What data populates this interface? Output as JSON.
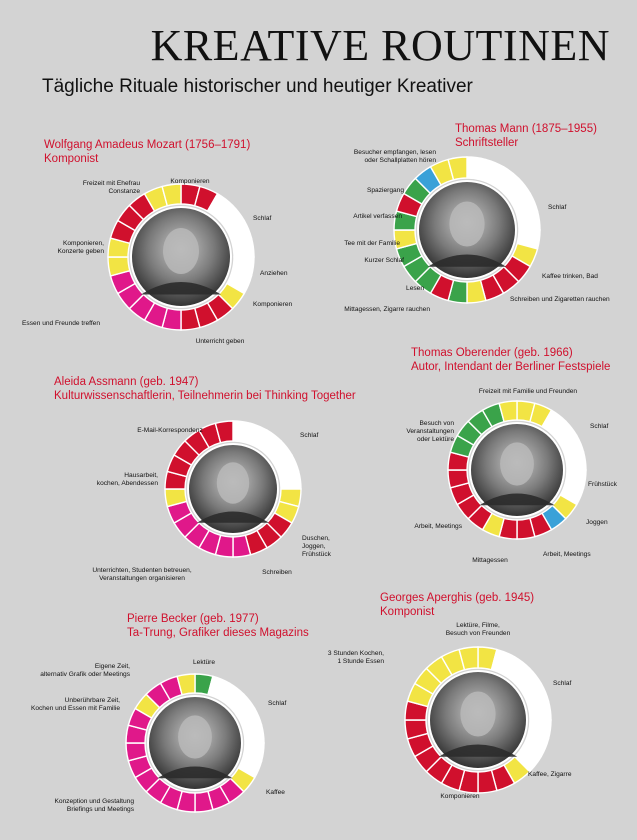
{
  "title": "KREATIVE ROUTINEN",
  "subtitle": "Tägliche Rituale historischer und heutiger Kreativer",
  "colors": {
    "work": "#d0102d",
    "leisure": "#f2e444",
    "sleep": "#ffffff",
    "teaching": "#e0188a",
    "exercise": "#3aa34a",
    "meal": "#3aa34a",
    "coffee": "#3aa1d8"
  },
  "chart_data": [
    {
      "type": "pie",
      "name_lines": [
        "Wolfgang Amadeus Mozart (1756–1791)",
        "Komponist"
      ],
      "hours": [
        "work",
        "work",
        "sleep",
        "sleep",
        "sleep",
        "sleep",
        "sleep",
        "sleep",
        "leisure",
        "work",
        "work",
        "work",
        "teaching",
        "teaching",
        "teaching",
        "teaching",
        "teaching",
        "leisure",
        "leisure",
        "work",
        "work",
        "work",
        "leisure",
        "leisure"
      ],
      "labels": [
        {
          "lines": [
            "Komponieren"
          ]
        },
        {
          "lines": [
            "Schlaf"
          ]
        },
        {
          "lines": [
            "Anziehen"
          ]
        },
        {
          "lines": [
            "Komponieren"
          ]
        },
        {
          "lines": [
            "Unterricht geben"
          ]
        },
        {
          "lines": [
            "Essen und Freunde treffen"
          ]
        },
        {
          "lines": [
            "Komponieren,",
            "Konzerte geben"
          ]
        },
        {
          "lines": [
            "Freizeit mit Ehefrau",
            "Constanze"
          ]
        }
      ]
    },
    {
      "type": "pie",
      "name_lines": [
        "Thomas Mann (1875–1955)",
        "Schriftsteller"
      ],
      "hours": [
        "sleep",
        "sleep",
        "sleep",
        "sleep",
        "sleep",
        "sleep",
        "sleep",
        "leisure",
        "work",
        "work",
        "work",
        "leisure",
        "exercise",
        "work",
        "exercise",
        "exercise",
        "exercise",
        "leisure",
        "exercise",
        "work",
        "exercise",
        "coffee",
        "leisure",
        "leisure"
      ],
      "labels": [
        {
          "lines": [
            "Schlaf"
          ]
        },
        {
          "lines": [
            "Kaffee trinken, Bad"
          ]
        },
        {
          "lines": [
            "Schreiben und Zigaretten rauchen"
          ]
        },
        {
          "lines": [
            "Mittagessen, Zigarre rauchen"
          ]
        },
        {
          "lines": [
            "Lesen"
          ]
        },
        {
          "lines": [
            "Kurzer Schlaf"
          ]
        },
        {
          "lines": [
            "Tee mit der Familie"
          ]
        },
        {
          "lines": [
            "Artikel verfassen"
          ]
        },
        {
          "lines": [
            "Spaziergang"
          ]
        },
        {
          "lines": [
            "Besucher empfangen, lesen",
            "oder Schallplatten hören"
          ]
        }
      ]
    },
    {
      "type": "pie",
      "name_lines": [
        "Aleida Assmann (geb. 1947)",
        "Kulturwissenschaftlerin, Teilnehmerin bei Thinking Together"
      ],
      "hours": [
        "sleep",
        "sleep",
        "sleep",
        "sleep",
        "sleep",
        "sleep",
        "leisure",
        "leisure",
        "work",
        "work",
        "work",
        "teaching",
        "teaching",
        "teaching",
        "teaching",
        "teaching",
        "teaching",
        "leisure",
        "work",
        "work",
        "work",
        "work",
        "work",
        "work"
      ],
      "labels": [
        {
          "lines": [
            "E-Mail-Korrespondenz"
          ]
        },
        {
          "lines": [
            "Schlaf"
          ]
        },
        {
          "lines": [
            "Duschen,",
            "Joggen,",
            "Frühstück"
          ]
        },
        {
          "lines": [
            "Schreiben"
          ]
        },
        {
          "lines": [
            "Unterrichten, Studenten betreuen,",
            "Veranstaltungen organisieren"
          ]
        },
        {
          "lines": [
            "Hausarbeit,",
            "kochen, Abendessen"
          ]
        }
      ]
    },
    {
      "type": "pie",
      "name_lines": [
        "Thomas Oberender (geb. 1966)",
        "Autor, Intendant der Berliner Festspiele"
      ],
      "hours": [
        "leisure",
        "leisure",
        "sleep",
        "sleep",
        "sleep",
        "sleep",
        "sleep",
        "sleep",
        "leisure",
        "coffee",
        "work",
        "work",
        "work",
        "leisure",
        "work",
        "work",
        "work",
        "work",
        "work",
        "exercise",
        "exercise",
        "exercise",
        "exercise",
        "leisure"
      ],
      "labels": [
        {
          "lines": [
            "Freizeit mit Familie und Freunden"
          ]
        },
        {
          "lines": [
            "Schlaf"
          ]
        },
        {
          "lines": [
            "Frühstück"
          ]
        },
        {
          "lines": [
            "Joggen"
          ]
        },
        {
          "lines": [
            "Arbeit, Meetings"
          ]
        },
        {
          "lines": [
            "Mittagessen"
          ]
        },
        {
          "lines": [
            "Arbeit, Meetings"
          ]
        },
        {
          "lines": [
            "Besuch von",
            "Veranstaltungen",
            "oder Lektüre"
          ]
        }
      ]
    },
    {
      "type": "pie",
      "name_lines": [
        "Pierre Becker (geb. 1977)",
        "Ta-Trung, Grafiker dieses Magazins"
      ],
      "hours": [
        "exercise",
        "sleep",
        "sleep",
        "sleep",
        "sleep",
        "sleep",
        "sleep",
        "sleep",
        "leisure",
        "teaching",
        "teaching",
        "teaching",
        "teaching",
        "teaching",
        "teaching",
        "teaching",
        "teaching",
        "teaching",
        "teaching",
        "teaching",
        "leisure",
        "teaching",
        "teaching",
        "leisure"
      ],
      "labels": [
        {
          "lines": [
            "Lektüre"
          ]
        },
        {
          "lines": [
            "Schlaf"
          ]
        },
        {
          "lines": [
            "Kaffee"
          ]
        },
        {
          "lines": [
            "Konzeption und Gestaltung",
            "Briefings und Meetings"
          ]
        },
        {
          "lines": [
            "Unberührbare Zeit,",
            "Kochen und Essen mit Familie"
          ]
        },
        {
          "lines": [
            "Eigene Zeit,",
            "alternativ Grafik oder Meetings"
          ]
        }
      ]
    },
    {
      "type": "pie",
      "name_lines": [
        "Georges Aperghis (geb. 1945)",
        "Komponist"
      ],
      "hours": [
        "leisure",
        "sleep",
        "sleep",
        "sleep",
        "sleep",
        "sleep",
        "sleep",
        "sleep",
        "sleep",
        "leisure",
        "work",
        "work",
        "work",
        "work",
        "work",
        "work",
        "work",
        "work",
        "work",
        "leisure",
        "leisure",
        "leisure",
        "leisure",
        "leisure"
      ],
      "labels": [
        {
          "lines": [
            "Lektüre, Filme,",
            "Besuch von Freunden"
          ]
        },
        {
          "lines": [
            "Schlaf"
          ]
        },
        {
          "lines": [
            "Kaffee, Zigarre"
          ]
        },
        {
          "lines": [
            "Komponieren"
          ]
        },
        {
          "lines": [
            "3 Stunden Kochen,",
            "1 Stunde Essen"
          ]
        }
      ]
    }
  ]
}
